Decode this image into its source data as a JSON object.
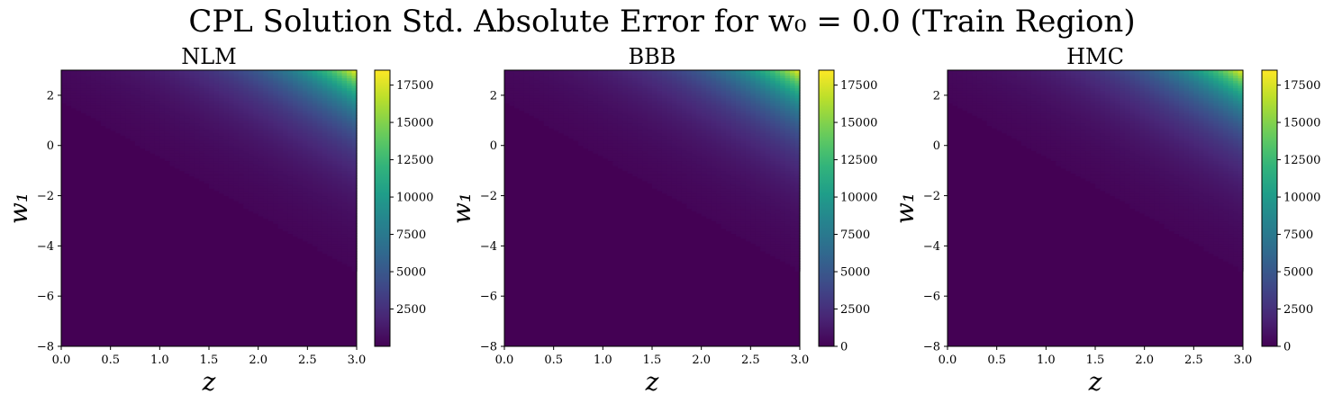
{
  "figure": {
    "suptitle": "CPL Solution Std. Absolute Error for w₀ = 0.0 (Train Region)"
  },
  "colors": {
    "colormap": "viridis",
    "axis": "#000000",
    "background": "#ffffff"
  },
  "chart_data": [
    {
      "type": "heatmap",
      "title": "NLM",
      "xlabel": "z",
      "ylabel": "w₁",
      "xlim": [
        0.0,
        3.0
      ],
      "ylim": [
        -8,
        3
      ],
      "x_ticks": [
        "0.0",
        "0.5",
        "1.0",
        "1.5",
        "2.0",
        "2.5",
        "3.0"
      ],
      "y_ticks": [
        "−8",
        "−6",
        "−4",
        "−2",
        "0",
        "2"
      ],
      "colorbar": {
        "range": [
          0,
          18500
        ],
        "ticks": [
          "2500",
          "5000",
          "7500",
          "10000",
          "12500",
          "15000",
          "17500"
        ]
      },
      "grid": false,
      "peak": {
        "z": 3.0,
        "w1": 3.0,
        "value": 18200
      },
      "description_value_trend": "near zero everywhere, rising sharply toward top-right corner"
    },
    {
      "type": "heatmap",
      "title": "BBB",
      "xlabel": "z",
      "ylabel": "w₁",
      "xlim": [
        0.0,
        3.0
      ],
      "ylim": [
        -8,
        3
      ],
      "x_ticks": [
        "0.0",
        "0.5",
        "1.0",
        "1.5",
        "2.0",
        "2.5",
        "3.0"
      ],
      "y_ticks": [
        "−8",
        "−6",
        "−4",
        "−2",
        "0",
        "2"
      ],
      "colorbar": {
        "range": [
          0,
          18500
        ],
        "ticks": [
          "0",
          "2500",
          "5000",
          "7500",
          "10000",
          "12500",
          "15000",
          "17500"
        ]
      },
      "grid": false,
      "peak": {
        "z": 3.0,
        "w1": 3.0,
        "value": 18200
      }
    },
    {
      "type": "heatmap",
      "title": "HMC",
      "xlabel": "z",
      "ylabel": "w₁",
      "xlim": [
        0.0,
        3.0
      ],
      "ylim": [
        -8,
        3
      ],
      "x_ticks": [
        "0.0",
        "0.5",
        "1.0",
        "1.5",
        "2.0",
        "2.5",
        "3.0"
      ],
      "y_ticks": [
        "−8",
        "−6",
        "−4",
        "−2",
        "0",
        "2"
      ],
      "colorbar": {
        "range": [
          0,
          18500
        ],
        "ticks": [
          "0",
          "2500",
          "5000",
          "7500",
          "10000",
          "12500",
          "15000",
          "17500"
        ]
      },
      "grid": false,
      "peak": {
        "z": 3.0,
        "w1": 3.0,
        "value": 18200
      }
    }
  ]
}
